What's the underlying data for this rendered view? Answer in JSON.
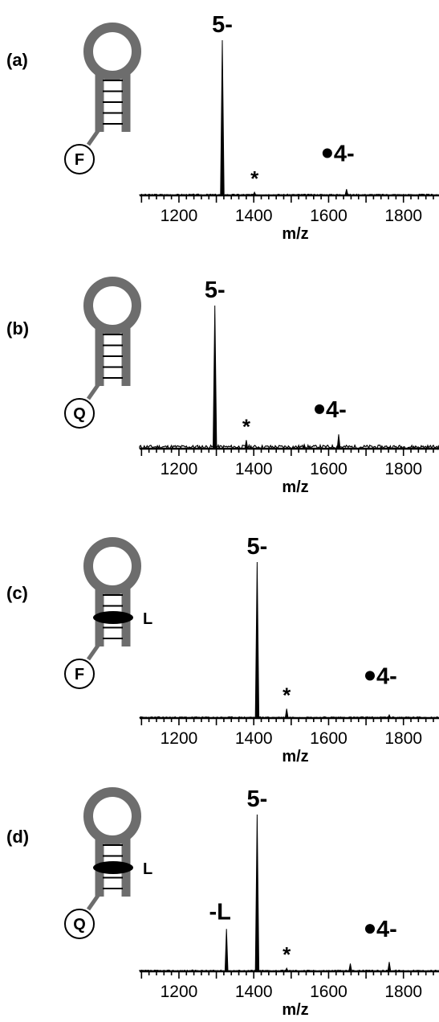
{
  "chart_data": [
    {
      "type": "line",
      "panel": "(a)",
      "xlabel": "m/z",
      "ylabel": "",
      "xlim": [
        1095,
        1895
      ],
      "xticks": [
        1200,
        1400,
        1600,
        1800
      ],
      "grid": false,
      "schematic": {
        "tag": "F",
        "ligand": ""
      },
      "peaks": [
        {
          "x": 1316,
          "y": 1.0
        },
        {
          "x": 1402,
          "y": 0.02
        },
        {
          "x": 1648,
          "y": 0.04
        }
      ],
      "annotations": [
        {
          "text": "5-",
          "x": 1316
        },
        {
          "text": "*",
          "x": 1402
        },
        {
          "text": "4-",
          "x": 1648,
          "dot": true
        }
      ]
    },
    {
      "type": "line",
      "panel": "(b)",
      "xlabel": "m/z",
      "ylabel": "",
      "xlim": [
        1095,
        1895
      ],
      "xticks": [
        1200,
        1400,
        1600,
        1800
      ],
      "grid": false,
      "schematic": {
        "tag": "Q",
        "ligand": ""
      },
      "peaks": [
        {
          "x": 1296,
          "y": 1.0
        },
        {
          "x": 1380,
          "y": 0.06
        },
        {
          "x": 1535,
          "y": 0.03
        },
        {
          "x": 1627,
          "y": 0.1
        }
      ],
      "annotations": [
        {
          "text": "5-",
          "x": 1296
        },
        {
          "text": "*",
          "x": 1380
        },
        {
          "text": "4-",
          "x": 1627,
          "dot": true
        }
      ]
    },
    {
      "type": "line",
      "panel": "(c)",
      "xlabel": "m/z",
      "ylabel": "",
      "xlim": [
        1095,
        1895
      ],
      "xticks": [
        1200,
        1400,
        1600,
        1800
      ],
      "grid": false,
      "schematic": {
        "tag": "F",
        "ligand": "L"
      },
      "peaks": [
        {
          "x": 1409,
          "y": 1.0
        },
        {
          "x": 1488,
          "y": 0.06
        },
        {
          "x": 1762,
          "y": 0.02
        }
      ],
      "annotations": [
        {
          "text": "5-",
          "x": 1409
        },
        {
          "text": "*",
          "x": 1488
        },
        {
          "text": "4-",
          "x": 1762,
          "dot": true
        }
      ]
    },
    {
      "type": "line",
      "panel": "(d)",
      "xlabel": "m/z",
      "ylabel": "",
      "xlim": [
        1095,
        1895
      ],
      "xticks": [
        1200,
        1400,
        1600,
        1800
      ],
      "grid": false,
      "schematic": {
        "tag": "Q",
        "ligand": "L"
      },
      "peaks": [
        {
          "x": 1327,
          "y": 0.27
        },
        {
          "x": 1409,
          "y": 1.0
        },
        {
          "x": 1488,
          "y": 0.02
        },
        {
          "x": 1658,
          "y": 0.05
        },
        {
          "x": 1762,
          "y": 0.06
        }
      ],
      "annotations": [
        {
          "text": "-L",
          "x": 1327
        },
        {
          "text": "5-",
          "x": 1409
        },
        {
          "text": "*",
          "x": 1488
        },
        {
          "text": "4-",
          "x": 1762,
          "dot": true
        }
      ]
    }
  ]
}
